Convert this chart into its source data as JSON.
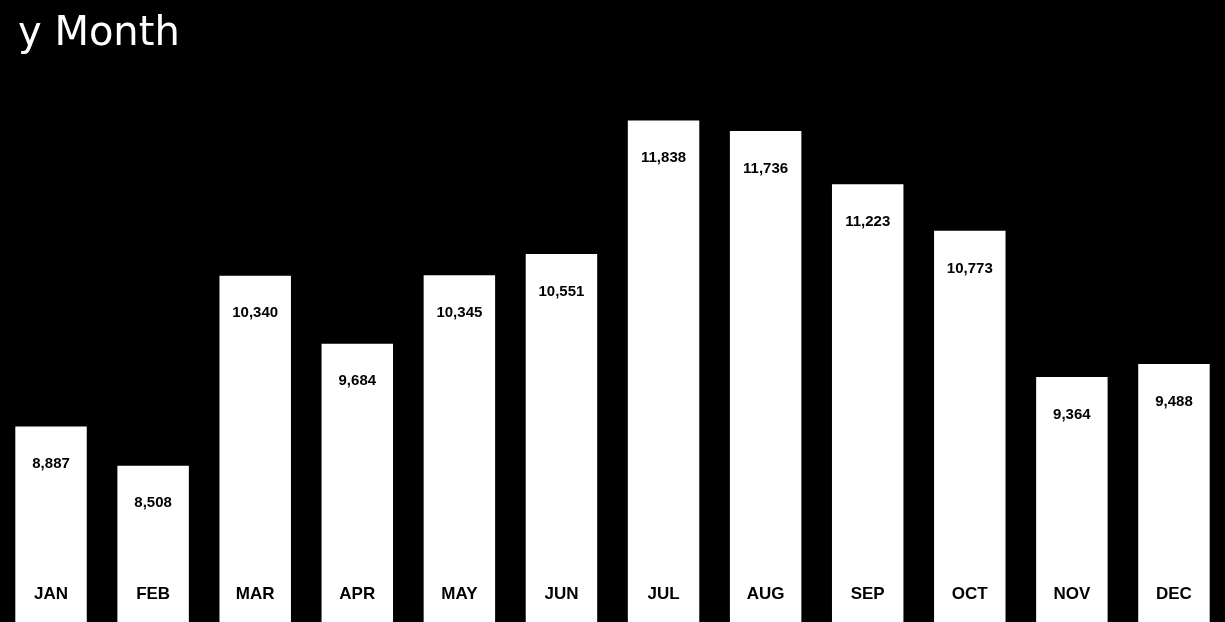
{
  "chart_data": {
    "type": "bar",
    "title": "y Month",
    "categories": [
      "JAN",
      "FEB",
      "MAR",
      "APR",
      "MAY",
      "JUN",
      "JUL",
      "AUG",
      "SEP",
      "OCT",
      "NOV",
      "DEC"
    ],
    "values": [
      8887,
      8508,
      10340,
      9684,
      10345,
      10551,
      11838,
      11736,
      11223,
      10773,
      9364,
      9488
    ],
    "value_labels": [
      "8,887",
      "8,508",
      "10,340",
      "9,684",
      "10,345",
      "10,551",
      "11,838",
      "11,736",
      "11,223",
      "10,773",
      "9,364",
      "9,488"
    ],
    "color": "#ffffff",
    "tick_labels": "x",
    "grid": false,
    "legend": false
  }
}
